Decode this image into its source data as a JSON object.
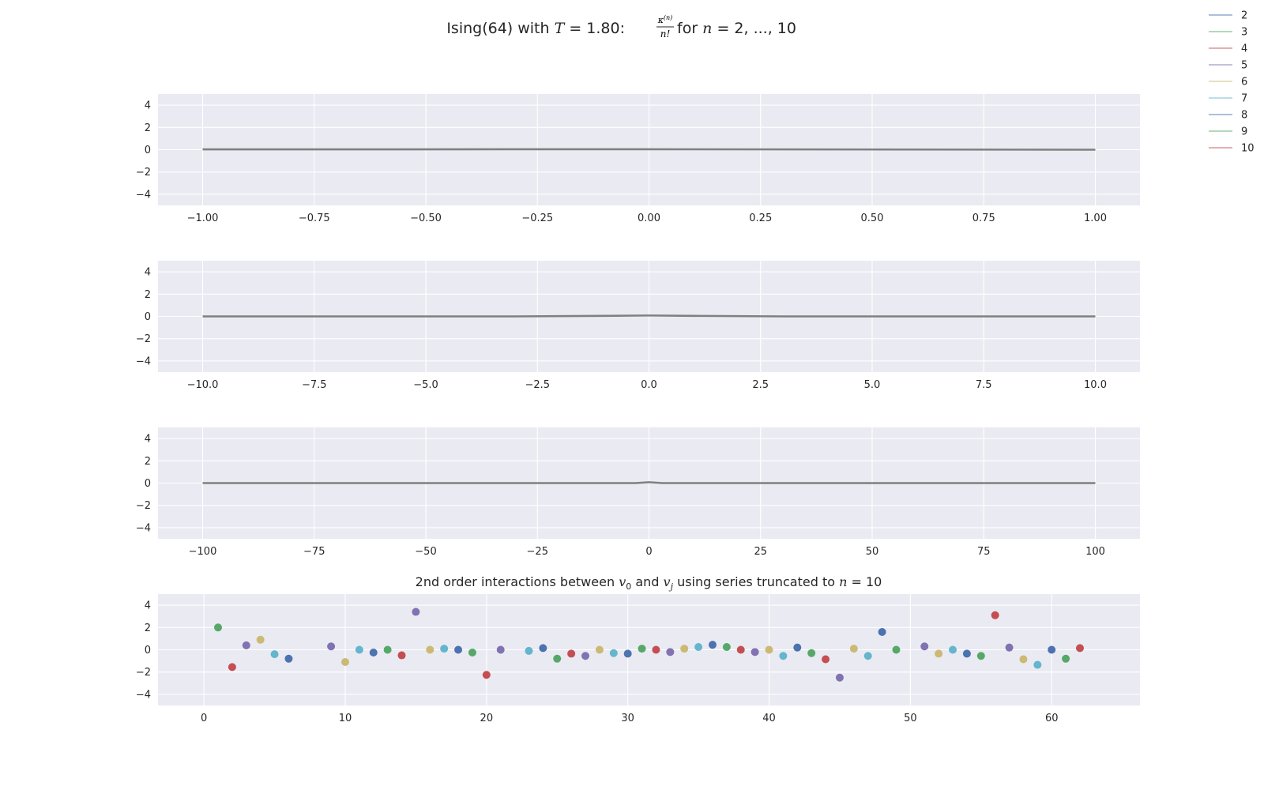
{
  "figure": {
    "title_prefix": "Ising(64) with ",
    "title_T_var": "T",
    "title_T_value": " = 1.80: ",
    "title_frac_num": "κ",
    "title_frac_num_sup": "(n)",
    "title_frac_den": "n!",
    "title_suffix_text": " for ",
    "title_n_var": "n",
    "title_n_range": " = 2, ..., 10"
  },
  "legend": {
    "entries": [
      {
        "label": "2",
        "color": "#4c72b0"
      },
      {
        "label": "3",
        "color": "#55a868"
      },
      {
        "label": "4",
        "color": "#c44e52"
      },
      {
        "label": "5",
        "color": "#8172b2"
      },
      {
        "label": "6",
        "color": "#ccb974"
      },
      {
        "label": "7",
        "color": "#64b5cd"
      },
      {
        "label": "8",
        "color": "#4c72b0"
      },
      {
        "label": "9",
        "color": "#55a868"
      },
      {
        "label": "10",
        "color": "#c44e52"
      }
    ]
  },
  "colors": {
    "axes_bg": "#eaeaf2",
    "grid": "#ffffff",
    "line": "#808080",
    "text": "#262626"
  },
  "chart_data": [
    {
      "type": "line",
      "xlim": [
        -1.1,
        1.1
      ],
      "ylim": [
        -5,
        5
      ],
      "xticks": [
        -1.0,
        -0.75,
        -0.5,
        -0.25,
        0.0,
        0.25,
        0.5,
        0.75,
        1.0
      ],
      "xtick_labels": [
        "−1.00",
        "−0.75",
        "−0.50",
        "−0.25",
        "0.00",
        "0.25",
        "0.50",
        "0.75",
        "1.00"
      ],
      "yticks": [
        4,
        2,
        0,
        -2,
        -4
      ],
      "ytick_labels": [
        "4",
        "2",
        "0",
        "−2",
        "−4"
      ],
      "x": [
        -1.0,
        0.0,
        1.0
      ],
      "y": [
        0.03,
        0.04,
        0.0
      ]
    },
    {
      "type": "line",
      "xlim": [
        -11,
        11
      ],
      "ylim": [
        -5,
        5
      ],
      "xticks": [
        -10,
        -7.5,
        -5,
        -2.5,
        0,
        2.5,
        5,
        7.5,
        10
      ],
      "xtick_labels": [
        "−10.0",
        "−7.5",
        "−5.0",
        "−2.5",
        "0.0",
        "2.5",
        "5.0",
        "7.5",
        "10.0"
      ],
      "yticks": [
        4,
        2,
        0,
        -2,
        -4
      ],
      "ytick_labels": [
        "4",
        "2",
        "0",
        "−2",
        "−4"
      ],
      "x": [
        -10,
        -3,
        -1,
        0,
        1,
        3,
        10
      ],
      "y": [
        0.0,
        0.0,
        0.05,
        0.08,
        0.05,
        0.0,
        0.0
      ]
    },
    {
      "type": "line",
      "xlim": [
        -110,
        110
      ],
      "ylim": [
        -5,
        5
      ],
      "xticks": [
        -100,
        -75,
        -50,
        -25,
        0,
        25,
        50,
        75,
        100
      ],
      "xtick_labels": [
        "−100",
        "−75",
        "−50",
        "−25",
        "0",
        "25",
        "50",
        "75",
        "100"
      ],
      "yticks": [
        4,
        2,
        0,
        -2,
        -4
      ],
      "ytick_labels": [
        "4",
        "2",
        "0",
        "−2",
        "−4"
      ],
      "x": [
        -100,
        -3,
        0,
        3,
        100
      ],
      "y": [
        0.0,
        0.0,
        0.08,
        0.0,
        0.0
      ]
    },
    {
      "type": "scatter",
      "title_prefix": "2nd order interactions between ",
      "title_v0": "v",
      "title_v0_sub": "0",
      "title_mid": " and ",
      "title_vj": "v",
      "title_vj_sub": "j",
      "title_suffix": " using series truncated to ",
      "title_n_var": "n",
      "title_n_value": " = 10",
      "xlim": [
        -3.25,
        66.25
      ],
      "ylim": [
        -5,
        5
      ],
      "xticks": [
        0,
        10,
        20,
        30,
        40,
        50,
        60
      ],
      "xtick_labels": [
        "0",
        "10",
        "20",
        "30",
        "40",
        "50",
        "60"
      ],
      "yticks": [
        4,
        2,
        0,
        -2,
        -4
      ],
      "ytick_labels": [
        "4",
        "2",
        "0",
        "−2",
        "−4"
      ],
      "palette": [
        "#4c72b0",
        "#55a868",
        "#c44e52",
        "#8172b2",
        "#ccb974",
        "#64b5cd"
      ],
      "x": [
        1,
        2,
        3,
        4,
        5,
        6,
        9,
        10,
        11,
        12,
        13,
        14,
        15,
        16,
        17,
        18,
        19,
        20,
        21,
        23,
        24,
        25,
        26,
        27,
        28,
        29,
        30,
        31,
        32,
        33,
        34,
        35,
        36,
        37,
        38,
        39,
        40,
        41,
        42,
        43,
        44,
        45,
        46,
        47,
        48,
        49,
        51,
        52,
        53,
        54,
        55,
        56,
        57,
        58,
        59,
        60,
        61,
        62
      ],
      "y": [
        2.0,
        -1.55,
        0.4,
        0.9,
        -0.4,
        -0.8,
        0.3,
        -1.1,
        0.0,
        -0.25,
        0.0,
        -0.5,
        3.4,
        0.0,
        0.1,
        0.0,
        -0.25,
        -2.25,
        0.0,
        -0.1,
        0.15,
        -0.8,
        -0.35,
        -0.55,
        0.0,
        -0.3,
        -0.35,
        0.1,
        0.0,
        -0.2,
        0.1,
        0.25,
        0.45,
        0.25,
        0.0,
        -0.2,
        0.0,
        -0.55,
        0.2,
        -0.3,
        -0.85,
        -2.5,
        0.1,
        -0.55,
        1.6,
        0.0,
        0.3,
        -0.35,
        0.0,
        -0.35,
        -0.55,
        3.1,
        0.2,
        -0.85,
        -1.35,
        0.0,
        -0.8,
        0.15
      ],
      "color_index": [
        1,
        2,
        3,
        4,
        5,
        0,
        3,
        4,
        5,
        0,
        1,
        2,
        3,
        4,
        5,
        0,
        1,
        2,
        3,
        5,
        0,
        1,
        2,
        3,
        4,
        5,
        0,
        1,
        2,
        3,
        4,
        5,
        0,
        1,
        2,
        3,
        4,
        5,
        0,
        1,
        2,
        3,
        4,
        5,
        0,
        1,
        3,
        4,
        5,
        0,
        1,
        2,
        3,
        4,
        5,
        0,
        1,
        2
      ]
    }
  ]
}
